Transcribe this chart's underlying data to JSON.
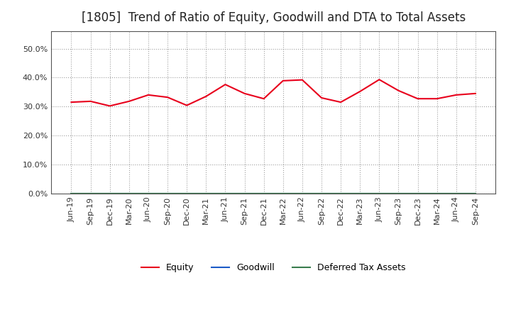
{
  "title": "[1805]  Trend of Ratio of Equity, Goodwill and DTA to Total Assets",
  "x_labels": [
    "Jun-19",
    "Sep-19",
    "Dec-19",
    "Mar-20",
    "Jun-20",
    "Sep-20",
    "Dec-20",
    "Mar-21",
    "Jun-21",
    "Sep-21",
    "Dec-21",
    "Mar-22",
    "Jun-22",
    "Sep-22",
    "Dec-22",
    "Mar-23",
    "Jun-23",
    "Sep-23",
    "Dec-23",
    "Mar-24",
    "Jun-24",
    "Sep-24"
  ],
  "equity": [
    0.315,
    0.318,
    0.302,
    0.318,
    0.34,
    0.332,
    0.304,
    0.335,
    0.376,
    0.345,
    0.327,
    0.389,
    0.392,
    0.33,
    0.315,
    0.352,
    0.393,
    0.355,
    0.327,
    0.327,
    0.34,
    0.345
  ],
  "goodwill": [
    0.0,
    0.0,
    0.0,
    0.0,
    0.0,
    0.0,
    0.0,
    0.0,
    0.0,
    0.0,
    0.0,
    0.0,
    0.0,
    0.0,
    0.0,
    0.0,
    0.0,
    0.0,
    0.0,
    0.0,
    0.0,
    0.0
  ],
  "deferred_tax_assets": [
    0.0,
    0.0,
    0.0,
    0.0,
    0.0,
    0.0,
    0.0,
    0.0,
    0.0,
    0.0,
    0.0,
    0.0,
    0.0,
    0.0,
    0.0,
    0.0,
    0.0,
    0.0,
    0.0,
    0.0,
    0.0,
    0.0
  ],
  "equity_color": "#e8001c",
  "goodwill_color": "#1c5bc7",
  "dta_color": "#3a7d4e",
  "ylim": [
    0.0,
    0.56
  ],
  "yticks": [
    0.0,
    0.1,
    0.2,
    0.3,
    0.4,
    0.5
  ],
  "background_color": "#ffffff",
  "plot_bg_color": "#ffffff",
  "grid_color": "#888888",
  "spine_color": "#555555",
  "title_fontsize": 12,
  "tick_fontsize": 8,
  "legend_fontsize": 9
}
